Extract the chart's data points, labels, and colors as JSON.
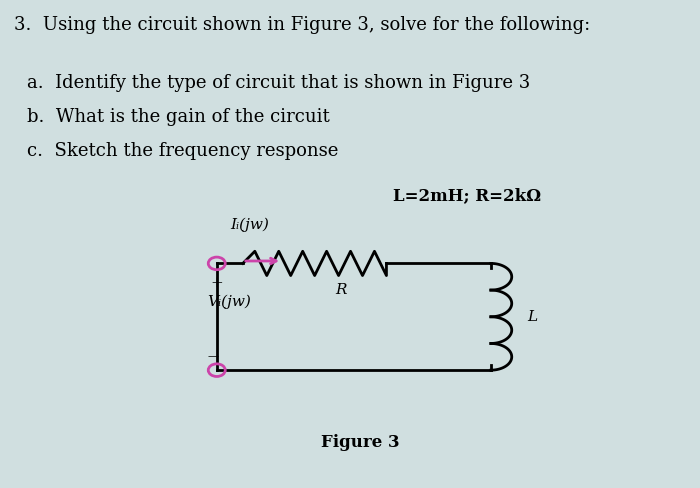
{
  "background_color": "#d0dfe0",
  "text_color": "#000000",
  "title_text": "3.  Using the circuit shown in Figure 3, solve for the following:",
  "items": [
    "a.  Identify the type of circuit that is shown in Figure 3",
    "b.  What is the gain of the circuit",
    "c.  Sketch the frequency response"
  ],
  "component_label": "L=2mH; R=2kΩ",
  "figure_label": "Figure 3",
  "circuit": {
    "label_Ii": "Iᵢ(jw)",
    "label_Vi": "Vᵢ(jw)",
    "label_R": "R",
    "label_L": "L",
    "arrow_color": "#cc44aa",
    "wire_color": "#000000",
    "node_color": "#cc44aa",
    "font_size_main": 13,
    "font_size_labels": 11,
    "font_size_component": 12
  }
}
